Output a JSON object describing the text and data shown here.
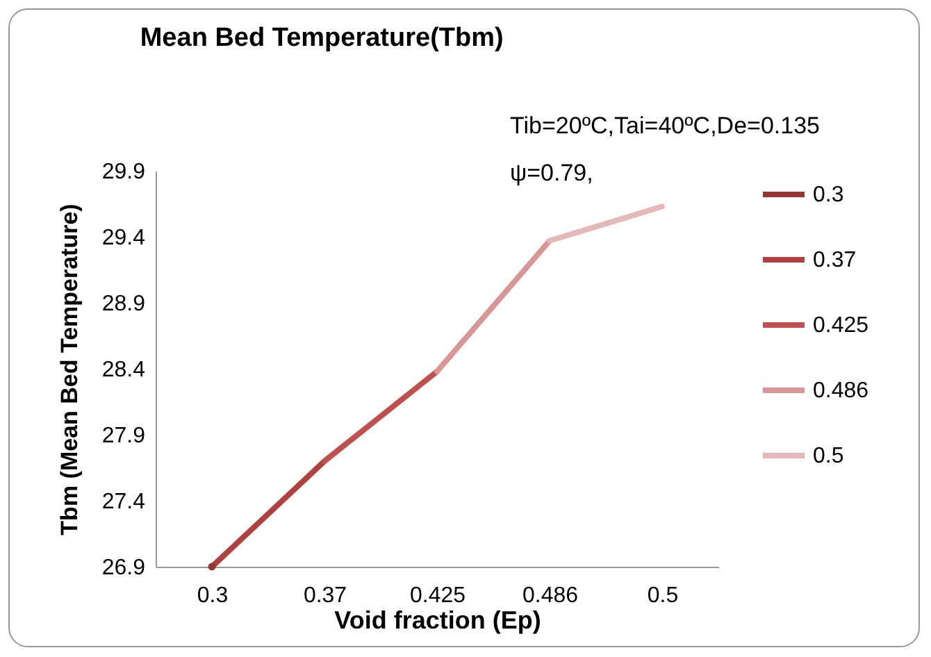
{
  "chart_data": {
    "type": "line",
    "title": "Mean Bed Temperature(Tbm)",
    "xlabel": "Void fraction (Ep)",
    "ylabel": "Tbm (Mean Bed Temperature)",
    "categories": [
      "0.3",
      "0.37",
      "0.425",
      "0.486",
      "0.5"
    ],
    "series": [
      {
        "name": "0.3",
        "color": "#943634",
        "marker": "circle",
        "values": [
          26.9,
          null,
          null,
          null,
          null
        ]
      },
      {
        "name": "0.37",
        "color": "#b0413e",
        "values": [
          26.9,
          27.7,
          null,
          null,
          null
        ]
      },
      {
        "name": "0.425",
        "color": "#c0504d",
        "values": [
          null,
          27.7,
          28.38,
          null,
          null
        ]
      },
      {
        "name": "0.486",
        "color": "#d99694",
        "values": [
          null,
          null,
          28.38,
          29.37,
          null
        ]
      },
      {
        "name": "0.5",
        "color": "#e6b9b8",
        "values": [
          null,
          null,
          null,
          29.37,
          29.63
        ]
      }
    ],
    "ylim": [
      26.9,
      29.9
    ],
    "yticks": [
      26.9,
      27.4,
      27.9,
      28.4,
      28.9,
      29.4,
      29.9
    ],
    "legend": "right",
    "annotations": [
      "Tib=20ºC,Tai=40ºC,De=0.135\nψ=0.79,"
    ]
  }
}
